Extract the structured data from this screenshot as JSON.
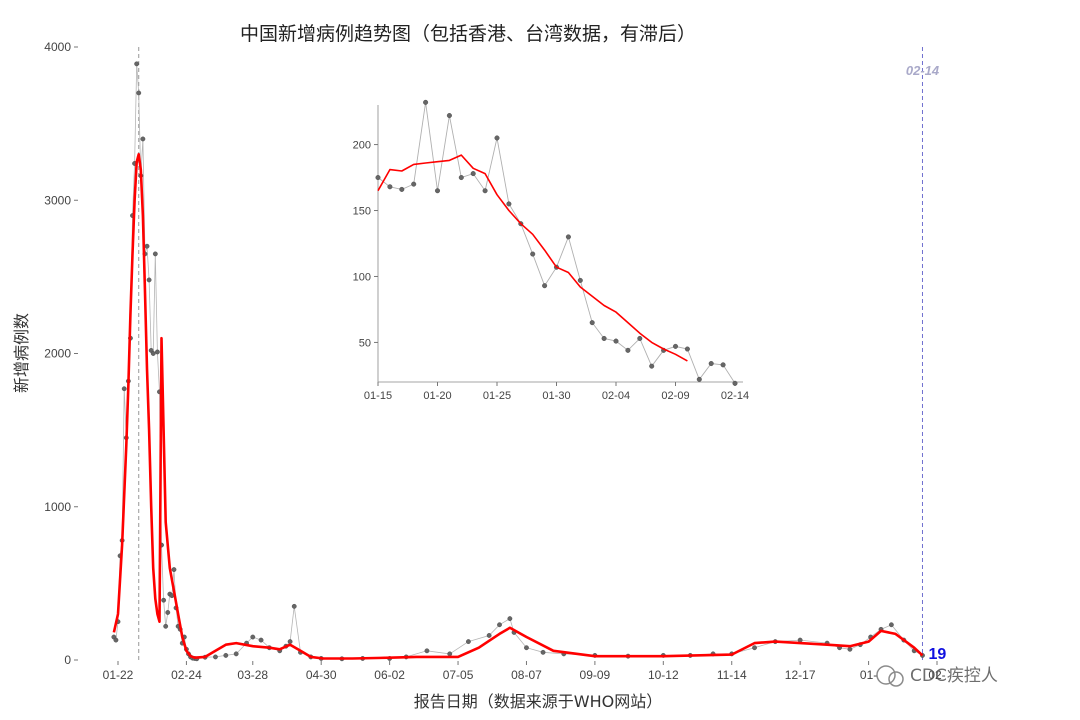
{
  "chart_data": [
    {
      "type": "line",
      "title": "中国新增病例趋势图（包括香港、台湾数据，有滞后）",
      "xlabel": "报告日期（数据来源于WHO网站）",
      "ylabel": "新增病例数",
      "ylim": [
        0,
        4000
      ],
      "yticks": [
        0,
        1000,
        2000,
        3000,
        4000
      ],
      "xticks": [
        "01-22",
        "02-24",
        "03-28",
        "04-30",
        "06-02",
        "07-05",
        "08-07",
        "09-09",
        "10-12",
        "11-14",
        "12-17",
        "01-19",
        "02-21"
      ],
      "xtick_labels_shown": [
        "01-22",
        "02-24",
        "03-28",
        "04-30",
        "06-02",
        "07-05",
        "08-07",
        "09-09",
        "10-12",
        "11-14",
        "12-17",
        "01-",
        "02-"
      ],
      "reference_line": {
        "label": "02-14",
        "color": "#7070d0"
      },
      "reference_line_early": {
        "date": "02-01",
        "color": "#999999"
      },
      "last_value_label": "19",
      "series": [
        {
          "style": "points",
          "color": "#666666",
          "x": [
            "01-20",
            "01-21",
            "01-22",
            "01-23",
            "01-24",
            "01-25",
            "01-26",
            "01-27",
            "01-28",
            "01-29",
            "01-30",
            "01-31",
            "02-01",
            "02-02",
            "02-03",
            "02-04",
            "02-05",
            "02-06",
            "02-07",
            "02-08",
            "02-09",
            "02-10",
            "02-11",
            "02-12",
            "02-13",
            "02-14",
            "02-15",
            "02-16",
            "02-17",
            "02-18",
            "02-19",
            "02-20",
            "02-21",
            "02-22",
            "02-23",
            "02-24",
            "02-25",
            "02-26",
            "02-27",
            "02-28",
            "03-01",
            "03-05",
            "03-10",
            "03-15",
            "03-20",
            "03-25",
            "03-28",
            "04-01",
            "04-05",
            "04-10",
            "04-13",
            "04-15",
            "04-17",
            "04-20",
            "04-25",
            "04-30",
            "05-10",
            "05-20",
            "06-02",
            "06-10",
            "06-20",
            "07-01",
            "07-10",
            "07-20",
            "07-25",
            "07-30",
            "08-01",
            "08-07",
            "08-15",
            "08-25",
            "09-09",
            "09-25",
            "10-12",
            "10-25",
            "11-05",
            "11-14",
            "11-25",
            "12-05",
            "12-17",
            "12-30",
            "01-05",
            "01-10",
            "01-15",
            "01-20",
            "01-25",
            "01-30",
            "02-05",
            "02-10",
            "02-14"
          ],
          "values": [
            150,
            130,
            250,
            680,
            780,
            1770,
            1450,
            1820,
            2100,
            2900,
            3240,
            3890,
            3700,
            3160,
            3400,
            2650,
            2700,
            2480,
            2020,
            2000,
            2650,
            2010,
            1750,
            750,
            390,
            220,
            310,
            430,
            420,
            590,
            340,
            220,
            200,
            110,
            150,
            70,
            40,
            20,
            12,
            10,
            8,
            18,
            20,
            30,
            40,
            110,
            150,
            130,
            80,
            60,
            90,
            120,
            350,
            50,
            20,
            10,
            8,
            10,
            10,
            20,
            60,
            40,
            120,
            160,
            230,
            270,
            180,
            80,
            50,
            40,
            30,
            25,
            30,
            30,
            40,
            40,
            80,
            120,
            130,
            110,
            80,
            70,
            100,
            150,
            200,
            230,
            130,
            60,
            30
          ]
        },
        {
          "style": "smooth",
          "color": "#ff0000",
          "x": [
            "01-20",
            "01-22",
            "01-24",
            "01-26",
            "01-27",
            "01-28",
            "01-29",
            "01-30",
            "01-31",
            "02-01",
            "02-02",
            "02-03",
            "02-04",
            "02-05",
            "02-06",
            "02-07",
            "02-08",
            "02-09",
            "02-10",
            "02-11",
            "02-12",
            "02-13",
            "02-14",
            "02-16",
            "02-18",
            "02-20",
            "02-22",
            "02-24",
            "02-26",
            "02-28",
            "03-05",
            "03-10",
            "03-15",
            "03-20",
            "03-28",
            "04-05",
            "04-10",
            "04-15",
            "04-20",
            "04-25",
            "05-01",
            "05-15",
            "06-02",
            "06-15",
            "07-05",
            "07-15",
            "07-25",
            "07-30",
            "08-07",
            "08-20",
            "09-09",
            "10-12",
            "11-14",
            "11-25",
            "12-05",
            "12-17",
            "12-30",
            "01-10",
            "01-19",
            "01-25",
            "02-01",
            "02-10",
            "02-14"
          ],
          "values": [
            180,
            300,
            750,
            1400,
            1800,
            2250,
            2650,
            3000,
            3250,
            3300,
            3200,
            2900,
            2400,
            1900,
            1500,
            1000,
            600,
            400,
            300,
            250,
            2100,
            1500,
            900,
            600,
            450,
            300,
            150,
            60,
            25,
            15,
            20,
            60,
            100,
            110,
            90,
            80,
            70,
            100,
            60,
            20,
            10,
            10,
            15,
            20,
            20,
            80,
            170,
            210,
            150,
            60,
            25,
            25,
            35,
            110,
            120,
            110,
            100,
            90,
            120,
            190,
            170,
            80,
            30
          ]
        }
      ]
    },
    {
      "type": "line",
      "inset": true,
      "ylim": [
        20,
        230
      ],
      "yticks": [
        50,
        100,
        150,
        200
      ],
      "xticks": [
        "01-15",
        "01-20",
        "01-25",
        "01-30",
        "02-04",
        "02-09",
        "02-14"
      ],
      "series": [
        {
          "style": "points",
          "color": "#666666",
          "x": [
            "01-15",
            "01-16",
            "01-17",
            "01-18",
            "01-19",
            "01-20",
            "01-21",
            "01-22",
            "01-23",
            "01-24",
            "01-25",
            "01-26",
            "01-27",
            "01-28",
            "01-29",
            "01-30",
            "01-31",
            "02-01",
            "02-02",
            "02-03",
            "02-04",
            "02-05",
            "02-06",
            "02-07",
            "02-08",
            "02-09",
            "02-10",
            "02-11",
            "02-12",
            "02-13",
            "02-14"
          ],
          "values": [
            175,
            168,
            166,
            170,
            232,
            165,
            222,
            175,
            178,
            165,
            205,
            155,
            140,
            117,
            93,
            107,
            130,
            97,
            65,
            53,
            51,
            44,
            53,
            32,
            44,
            47,
            45,
            22,
            34,
            33,
            19
          ]
        },
        {
          "style": "smooth",
          "color": "#ff0000",
          "x": [
            "01-15",
            "01-16",
            "01-17",
            "01-18",
            "01-19",
            "01-20",
            "01-21",
            "01-22",
            "01-23",
            "01-24",
            "01-25",
            "01-26",
            "01-27",
            "01-28",
            "01-29",
            "01-30",
            "01-31",
            "02-01",
            "02-02",
            "02-03",
            "02-04",
            "02-05",
            "02-06",
            "02-07",
            "02-08",
            "02-09",
            "02-10"
          ],
          "values": [
            165,
            181,
            180,
            185,
            186,
            187,
            188,
            192,
            182,
            178,
            162,
            150,
            140,
            132,
            120,
            107,
            103,
            92,
            85,
            78,
            73,
            65,
            57,
            50,
            45,
            41,
            36
          ]
        }
      ]
    }
  ],
  "watermark": "CDC疾控人"
}
